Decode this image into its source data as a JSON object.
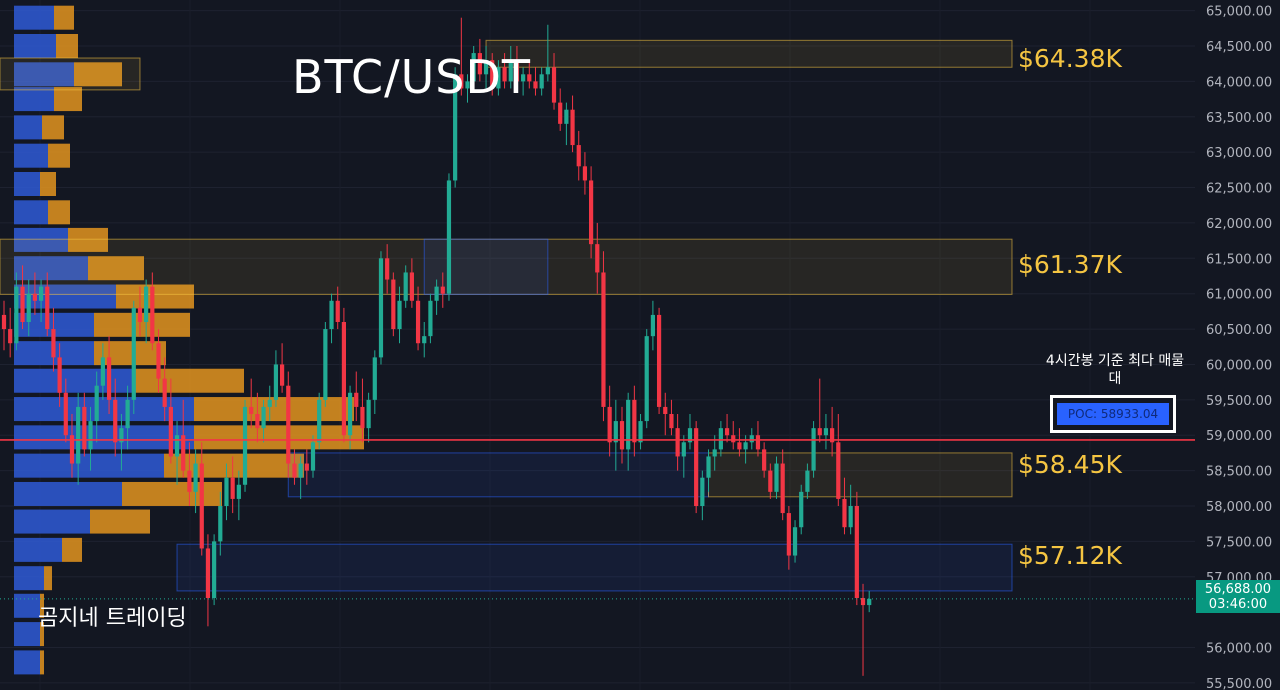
{
  "chart_data": {
    "type": "candlestick",
    "title": "BTC/USDT",
    "watermark": "곰지네 트레이딩",
    "ylim": [
      55400,
      65150
    ],
    "y_ticks": [
      "65,000.00",
      "64,500.00",
      "64,000.00",
      "63,500.00",
      "63,000.00",
      "62,500.00",
      "62,000.00",
      "61,500.00",
      "61,000.00",
      "60,500.00",
      "60,000.00",
      "59,500.00",
      "59,000.00",
      "58,500.00",
      "58,000.00",
      "57,500.00",
      "57,000.00",
      "56,000.00",
      "55,500.00"
    ],
    "y_tick_values": [
      65000,
      64500,
      64000,
      63500,
      63000,
      62500,
      62000,
      61500,
      61000,
      60500,
      60000,
      59500,
      59000,
      58500,
      58000,
      57500,
      57000,
      56000,
      55500
    ],
    "last_price": {
      "value": 56688,
      "label": "56,688.00",
      "countdown": "03:46:00"
    },
    "poc": {
      "value": 58933.04,
      "label": "POC: 58933.04",
      "note": "4시간봉 기준 최다 매물대"
    },
    "levels": [
      {
        "label": "$64.38K",
        "low": 64200,
        "high": 64580
      },
      {
        "label": "$61.37K",
        "low": 60990,
        "high": 61770
      },
      {
        "label": "$58.45K",
        "low": 58130,
        "high": 58750
      },
      {
        "label": "$57.12K",
        "low": 56800,
        "high": 57460
      }
    ],
    "zones": [
      {
        "type": "resistance",
        "x_start_index": 0,
        "x_end_index": 22,
        "low": 63880,
        "high": 64330,
        "color": "#f5c542"
      },
      {
        "type": "resistance",
        "x_start_index": 78,
        "x_end_index": 162,
        "low": 64200,
        "high": 64580,
        "color": "#f5c542"
      },
      {
        "type": "resistance",
        "x_start_index": 0,
        "x_end_index": 162,
        "low": 60990,
        "high": 61770,
        "color": "#f5c542"
      },
      {
        "type": "support",
        "x_start_index": 68,
        "x_end_index": 88,
        "low": 60990,
        "high": 61770,
        "color": "#2962ff"
      },
      {
        "type": "support",
        "x_start_index": 46,
        "x_end_index": 114,
        "low": 58130,
        "high": 58750,
        "color": "#2962ff"
      },
      {
        "type": "resistance",
        "x_start_index": 114,
        "x_end_index": 162,
        "low": 58130,
        "high": 58750,
        "color": "#f5c542"
      },
      {
        "type": "support",
        "x_start_index": 28,
        "x_end_index": 162,
        "low": 56800,
        "high": 57460,
        "color": "#2962ff"
      }
    ],
    "volume_profile": [
      {
        "price": 64900,
        "buy": 40,
        "sell": 20
      },
      {
        "price": 64500,
        "buy": 42,
        "sell": 22
      },
      {
        "price": 64100,
        "buy": 60,
        "sell": 48
      },
      {
        "price": 63750,
        "buy": 40,
        "sell": 28
      },
      {
        "price": 63350,
        "buy": 28,
        "sell": 22
      },
      {
        "price": 62950,
        "buy": 34,
        "sell": 22
      },
      {
        "price": 62550,
        "buy": 26,
        "sell": 16
      },
      {
        "price": 62150,
        "buy": 34,
        "sell": 22
      },
      {
        "price": 61760,
        "buy": 54,
        "sell": 40
      },
      {
        "price": 61360,
        "buy": 74,
        "sell": 56
      },
      {
        "price": 60960,
        "buy": 102,
        "sell": 78
      },
      {
        "price": 60560,
        "buy": 80,
        "sell": 96
      },
      {
        "price": 60160,
        "buy": 80,
        "sell": 72
      },
      {
        "price": 59770,
        "buy": 120,
        "sell": 110
      },
      {
        "price": 59370,
        "buy": 180,
        "sell": 160
      },
      {
        "price": 58970,
        "buy": 180,
        "sell": 170
      },
      {
        "price": 58570,
        "buy": 150,
        "sell": 140
      },
      {
        "price": 58170,
        "buy": 108,
        "sell": 100
      },
      {
        "price": 57780,
        "buy": 76,
        "sell": 60
      },
      {
        "price": 57380,
        "buy": 48,
        "sell": 20
      },
      {
        "price": 56980,
        "buy": 30,
        "sell": 8
      },
      {
        "price": 56590,
        "buy": 26,
        "sell": 4
      },
      {
        "price": 56190,
        "buy": 26,
        "sell": 4
      },
      {
        "price": 55790,
        "buy": 26,
        "sell": 4
      }
    ],
    "candles": [
      [
        60700,
        60900,
        60200,
        60500
      ],
      [
        60500,
        60800,
        60100,
        60300
      ],
      [
        60300,
        61300,
        60200,
        61100
      ],
      [
        61100,
        61400,
        60500,
        60600
      ],
      [
        60600,
        61200,
        60400,
        61000
      ],
      [
        61000,
        61300,
        60700,
        60900
      ],
      [
        60900,
        61200,
        60600,
        61100
      ],
      [
        61100,
        61300,
        60400,
        60500
      ],
      [
        60500,
        60800,
        59900,
        60100
      ],
      [
        60100,
        60300,
        59400,
        59600
      ],
      [
        59600,
        59800,
        58900,
        59000
      ],
      [
        59000,
        59300,
        58400,
        58600
      ],
      [
        58600,
        59600,
        58300,
        59400
      ],
      [
        59400,
        59600,
        58700,
        58800
      ],
      [
        58800,
        59400,
        58500,
        59200
      ],
      [
        59200,
        59900,
        58900,
        59700
      ],
      [
        59700,
        60300,
        59500,
        60100
      ],
      [
        60100,
        60400,
        59300,
        59500
      ],
      [
        59500,
        59800,
        58700,
        58900
      ],
      [
        58900,
        59300,
        58500,
        59100
      ],
      [
        59100,
        59700,
        58800,
        59500
      ],
      [
        59500,
        60900,
        59300,
        60800
      ],
      [
        60800,
        61100,
        60400,
        60600
      ],
      [
        60600,
        61200,
        60300,
        61100
      ],
      [
        61100,
        61300,
        60200,
        60300
      ],
      [
        60300,
        60500,
        59600,
        59800
      ],
      [
        59800,
        60100,
        59200,
        59400
      ],
      [
        59400,
        59800,
        58600,
        58700
      ],
      [
        58700,
        59200,
        58300,
        59000
      ],
      [
        59000,
        59500,
        58400,
        58500
      ],
      [
        58500,
        58900,
        58000,
        58200
      ],
      [
        58200,
        58800,
        57900,
        58600
      ],
      [
        58600,
        58900,
        57300,
        57400
      ],
      [
        57400,
        57600,
        56300,
        56700
      ],
      [
        56700,
        57600,
        56600,
        57500
      ],
      [
        57500,
        58200,
        57300,
        58000
      ],
      [
        58000,
        58600,
        57800,
        58400
      ],
      [
        58400,
        58700,
        57900,
        58100
      ],
      [
        58100,
        58500,
        57800,
        58300
      ],
      [
        58300,
        59500,
        58200,
        59400
      ],
      [
        59400,
        59800,
        59100,
        59300
      ],
      [
        59300,
        59600,
        58900,
        59100
      ],
      [
        59100,
        59500,
        58900,
        59400
      ],
      [
        59400,
        59700,
        59200,
        59500
      ],
      [
        59500,
        60200,
        59400,
        60000
      ],
      [
        60000,
        60300,
        59600,
        59700
      ],
      [
        59700,
        59900,
        58400,
        58600
      ],
      [
        58600,
        58800,
        58300,
        58400
      ],
      [
        58400,
        58700,
        58100,
        58600
      ],
      [
        58600,
        58800,
        58300,
        58500
      ],
      [
        58500,
        59000,
        58400,
        58900
      ],
      [
        58900,
        59600,
        58800,
        59500
      ],
      [
        59500,
        60600,
        59400,
        60500
      ],
      [
        60500,
        61000,
        60300,
        60900
      ],
      [
        60900,
        61100,
        60500,
        60600
      ],
      [
        60600,
        60800,
        58900,
        59000
      ],
      [
        59000,
        59700,
        58800,
        59600
      ],
      [
        59600,
        59900,
        59200,
        59400
      ],
      [
        59400,
        59800,
        58900,
        59100
      ],
      [
        59100,
        59600,
        58900,
        59500
      ],
      [
        59500,
        60200,
        59300,
        60100
      ],
      [
        60100,
        61600,
        60000,
        61500
      ],
      [
        61500,
        61700,
        61000,
        61200
      ],
      [
        61200,
        61300,
        60400,
        60500
      ],
      [
        60500,
        61100,
        60300,
        60900
      ],
      [
        60900,
        61400,
        60800,
        61300
      ],
      [
        61300,
        61500,
        60800,
        60900
      ],
      [
        60900,
        61100,
        60200,
        60300
      ],
      [
        60300,
        60600,
        60100,
        60400
      ],
      [
        60400,
        61000,
        60300,
        60900
      ],
      [
        60900,
        61200,
        60700,
        61100
      ],
      [
        61100,
        61300,
        60800,
        61000
      ],
      [
        61000,
        62700,
        60900,
        62600
      ],
      [
        62600,
        64200,
        62500,
        64100
      ],
      [
        64100,
        64900,
        63800,
        63900
      ],
      [
        63900,
        64100,
        63700,
        64000
      ],
      [
        64000,
        64500,
        63900,
        64400
      ],
      [
        64400,
        64600,
        64000,
        64100
      ],
      [
        64100,
        64500,
        63900,
        64300
      ],
      [
        64300,
        64400,
        63800,
        63900
      ],
      [
        63900,
        64300,
        63800,
        64200
      ],
      [
        64200,
        64400,
        63900,
        64000
      ],
      [
        64000,
        64500,
        63900,
        64300
      ],
      [
        64300,
        64500,
        63900,
        64000
      ],
      [
        64000,
        64200,
        63800,
        64100
      ],
      [
        64100,
        64300,
        63900,
        64000
      ],
      [
        64000,
        64200,
        63800,
        63900
      ],
      [
        63900,
        64200,
        63800,
        64100
      ],
      [
        64100,
        64800,
        64000,
        64200
      ],
      [
        64200,
        64400,
        63600,
        63700
      ],
      [
        63700,
        63900,
        63300,
        63400
      ],
      [
        63400,
        63700,
        63100,
        63600
      ],
      [
        63600,
        63800,
        63000,
        63100
      ],
      [
        63100,
        63300,
        62600,
        62800
      ],
      [
        62800,
        63000,
        62400,
        62600
      ],
      [
        62600,
        62800,
        61500,
        61700
      ],
      [
        61700,
        62000,
        61000,
        61300
      ],
      [
        61300,
        61600,
        59200,
        59400
      ],
      [
        59400,
        59700,
        58700,
        58900
      ],
      [
        58900,
        59500,
        58500,
        59200
      ],
      [
        59200,
        59400,
        58600,
        58800
      ],
      [
        58800,
        59600,
        58500,
        59500
      ],
      [
        59500,
        59700,
        58700,
        58900
      ],
      [
        58900,
        59300,
        58800,
        59200
      ],
      [
        59200,
        60500,
        59100,
        60400
      ],
      [
        60400,
        60900,
        60200,
        60700
      ],
      [
        60700,
        60800,
        59300,
        59400
      ],
      [
        59400,
        59600,
        59000,
        59300
      ],
      [
        59300,
        59500,
        59000,
        59100
      ],
      [
        59100,
        59300,
        58500,
        58700
      ],
      [
        58700,
        59000,
        58400,
        58900
      ],
      [
        58900,
        59300,
        58800,
        59100
      ],
      [
        59100,
        59200,
        57900,
        58000
      ],
      [
        58000,
        58500,
        57800,
        58400
      ],
      [
        58400,
        58800,
        58200,
        58700
      ],
      [
        58700,
        59000,
        58500,
        58800
      ],
      [
        58800,
        59200,
        58700,
        59100
      ],
      [
        59100,
        59300,
        58900,
        59000
      ],
      [
        59000,
        59200,
        58800,
        58900
      ],
      [
        58900,
        59100,
        58700,
        58800
      ],
      [
        58800,
        59000,
        58600,
        58900
      ],
      [
        58900,
        59100,
        58800,
        59000
      ],
      [
        59000,
        59200,
        58700,
        58800
      ],
      [
        58800,
        58900,
        58400,
        58500
      ],
      [
        58500,
        58600,
        58100,
        58200
      ],
      [
        58200,
        58700,
        58100,
        58600
      ],
      [
        58600,
        58800,
        57800,
        57900
      ],
      [
        57900,
        58000,
        57100,
        57300
      ],
      [
        57300,
        57800,
        57200,
        57700
      ],
      [
        57700,
        58300,
        57600,
        58200
      ],
      [
        58200,
        58600,
        58100,
        58500
      ],
      [
        58500,
        59200,
        58400,
        59100
      ],
      [
        59100,
        59800,
        58900,
        59000
      ],
      [
        59000,
        59300,
        58800,
        59100
      ],
      [
        59100,
        59400,
        58700,
        58900
      ],
      [
        58900,
        59300,
        58000,
        58100
      ],
      [
        58100,
        58400,
        57600,
        57700
      ],
      [
        57700,
        58300,
        57600,
        58000
      ],
      [
        58000,
        58200,
        56600,
        56700
      ],
      [
        56700,
        56900,
        55600,
        56600
      ],
      [
        56600,
        56800,
        56500,
        56688
      ]
    ]
  }
}
